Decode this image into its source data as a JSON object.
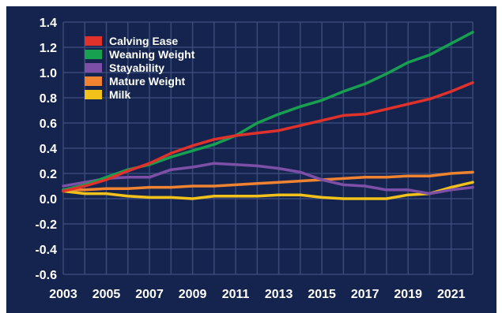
{
  "chart_data": {
    "type": "line",
    "title": "",
    "xlabel": "",
    "ylabel": "",
    "xlim": [
      2003,
      2022
    ],
    "ylim": [
      -0.6,
      1.4
    ],
    "x_ticks": [
      2003,
      2005,
      2007,
      2009,
      2011,
      2013,
      2015,
      2017,
      2019,
      2021
    ],
    "y_ticks": [
      -0.6,
      -0.4,
      -0.2,
      0.0,
      0.2,
      0.4,
      0.6,
      0.8,
      1.0,
      1.2,
      1.4
    ],
    "y_tick_labels": [
      "-0.6",
      "-0.4",
      "-0.2",
      "0.0",
      "0.2",
      "0.4",
      "0.6",
      "0.8",
      "1.0",
      "1.2",
      "1.4"
    ],
    "grid": true,
    "legend_position": "top-left",
    "background_color": "#15244e",
    "grid_color": "#3a4a78",
    "x": [
      2003,
      2004,
      2005,
      2006,
      2007,
      2008,
      2009,
      2010,
      2011,
      2012,
      2013,
      2014,
      2015,
      2016,
      2017,
      2018,
      2019,
      2020,
      2021,
      2022
    ],
    "series": [
      {
        "name": "Calving Ease",
        "color": "#e0312b",
        "values": [
          0.06,
          0.1,
          0.15,
          0.22,
          0.28,
          0.36,
          0.42,
          0.47,
          0.5,
          0.52,
          0.54,
          0.58,
          0.62,
          0.66,
          0.67,
          0.71,
          0.75,
          0.79,
          0.85,
          0.92
        ]
      },
      {
        "name": "Weaning Weight",
        "color": "#17a050",
        "values": [
          0.07,
          0.11,
          0.17,
          0.23,
          0.27,
          0.33,
          0.38,
          0.43,
          0.5,
          0.6,
          0.67,
          0.73,
          0.78,
          0.85,
          0.91,
          0.99,
          1.08,
          1.14,
          1.23,
          1.32
        ]
      },
      {
        "name": "Stayability",
        "color": "#7d4fa6",
        "values": [
          0.1,
          0.13,
          0.16,
          0.17,
          0.17,
          0.23,
          0.25,
          0.28,
          0.27,
          0.26,
          0.24,
          0.21,
          0.15,
          0.11,
          0.1,
          0.07,
          0.07,
          0.04,
          0.07,
          0.09
        ]
      },
      {
        "name": "Mature Weight",
        "color": "#ef8330",
        "values": [
          0.07,
          0.07,
          0.08,
          0.08,
          0.09,
          0.09,
          0.1,
          0.1,
          0.11,
          0.12,
          0.13,
          0.14,
          0.15,
          0.16,
          0.17,
          0.17,
          0.18,
          0.18,
          0.2,
          0.21
        ]
      },
      {
        "name": "Milk",
        "color": "#f2c21a",
        "values": [
          0.06,
          0.04,
          0.04,
          0.02,
          0.01,
          0.01,
          0.0,
          0.02,
          0.02,
          0.02,
          0.03,
          0.03,
          0.01,
          0.0,
          0.0,
          0.0,
          0.03,
          0.04,
          0.09,
          0.13
        ]
      }
    ]
  }
}
